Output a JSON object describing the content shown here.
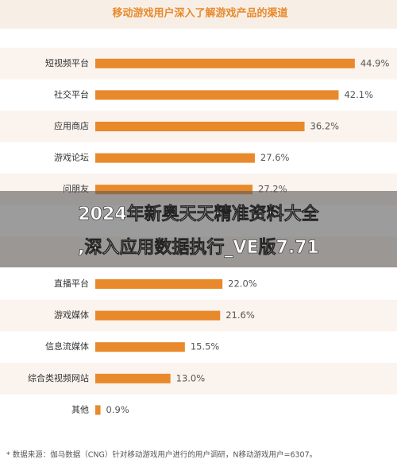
{
  "chart_data": {
    "type": "barh",
    "title": "移动游戏用户深入了解游戏产品的渠道",
    "categories": [
      "短视频平台",
      "社交平台",
      "应用商店",
      "游戏论坛",
      "问朋友",
      null,
      null,
      "直播平台",
      "游戏媒体",
      "信息流媒体",
      "综合类视频网站",
      "其他"
    ],
    "values": [
      44.9,
      42.1,
      36.2,
      27.6,
      27.2,
      null,
      null,
      22.0,
      21.6,
      15.5,
      13.0,
      0.9
    ],
    "value_labels": [
      "44.9%",
      "42.1%",
      "36.2%",
      "27.6%",
      "27.2%",
      null,
      null,
      "22.0%",
      "21.6%",
      "15.5%",
      "13.0%",
      "0.9%"
    ],
    "color": "#e8892b",
    "note": "* 数据来源：伽马数据（CNG）针对移动游戏用户进行的用户调研，N移动游戏用户=6307。"
  },
  "banner": {
    "lines": [
      "2024年新奥天天精准资料大全",
      ",深入应用数据执行_VE版7.71"
    ]
  }
}
